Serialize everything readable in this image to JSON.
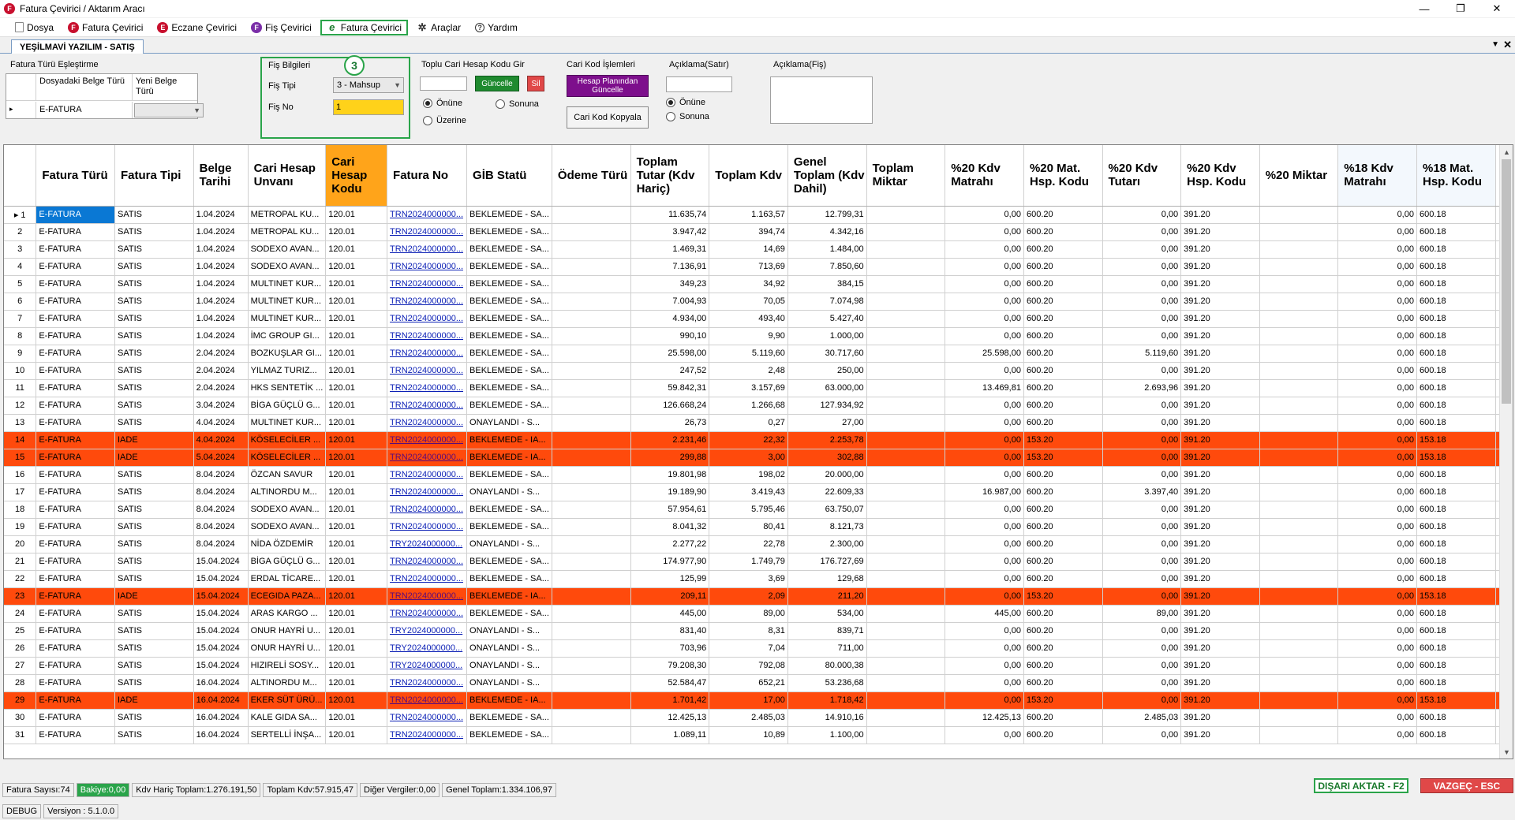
{
  "window": {
    "title": "Fatura Çevirici / Aktarım Aracı",
    "app_icon_letter": "F",
    "controls": [
      "—",
      "❐",
      "✕"
    ]
  },
  "menu": [
    {
      "label": "Dosya",
      "icon": "document-icon",
      "icon_text": ""
    },
    {
      "label": "Fatura Çevirici",
      "icon": "f-red-icon",
      "icon_text": "F"
    },
    {
      "label": "Eczane Çevirici",
      "icon": "e-red-icon",
      "icon_text": "E"
    },
    {
      "label": "Fiş Çevirici",
      "icon": "f-purple-icon",
      "icon_text": "F"
    },
    {
      "label": "Fatura Çevirici",
      "icon": "e-green-icon",
      "icon_text": "e"
    },
    {
      "label": "Araçlar",
      "icon": "tools-icon",
      "icon_text": "✲"
    },
    {
      "label": "Yardım",
      "icon": "help-icon",
      "icon_text": "?"
    }
  ],
  "tab": {
    "label": "YEŞİLMAVİ YAZILIM - SATIŞ",
    "arrow": "▼",
    "close": "✕"
  },
  "mapping": {
    "title": "Fatura Türü Eşleştirme",
    "col1": "Dosyadaki Belge Türü",
    "col2": "Yeni Belge Türü",
    "row_marker": "▸",
    "row_value": "E-FATURA",
    "row_new": ""
  },
  "fis_bilgileri": {
    "title": "Fiş Bilgileri",
    "step": "3",
    "fis_tipi_label": "Fiş Tipi",
    "fis_tipi_value": "3 - Mahsup",
    "fis_no_label": "Fiş No",
    "fis_no_value": "1"
  },
  "toplu_cari": {
    "title": "Toplu Cari Hesap Kodu Gir",
    "input_value": "",
    "update_label": "Güncelle",
    "delete_label": "Sil",
    "radio1": "Önüne",
    "radio2": "Sonuna",
    "radio3": "Üzerine"
  },
  "cari_kod": {
    "title": "Cari Kod İşlemleri",
    "btn1": "Hesap Planından Güncelle",
    "btn2": "Cari Kod Kopyala"
  },
  "aciklama_satir": {
    "title": "Açıklama(Satır)",
    "value": "",
    "radio1": "Önüne",
    "radio2": "Sonuna"
  },
  "aciklama_fis": {
    "title": "Açıklama(Fiş)",
    "value": ""
  },
  "colors": {
    "highlight_orange": "#ffa41a",
    "iade_row": "#ff4a0c",
    "green": "#2aa44a",
    "red_btn": "#e04848"
  },
  "grid": {
    "headers": [
      "Fatura Türü",
      "Fatura Tipi",
      "Belge Tarihi",
      "Cari Hesap Unvanı",
      "Cari Hesap Kodu",
      "Fatura No",
      "GİB Statü",
      "Ödeme Türü",
      "Toplam Tutar (Kdv Hariç)",
      "Toplam Kdv",
      "Genel Toplam (Kdv Dahil)",
      "Toplam Miktar",
      "%20 Kdv Matrahı",
      "%20 Mat. Hsp. Kodu",
      "%20 Kdv Tutarı",
      "%20 Kdv Hsp. Kodu",
      "%20 Miktar",
      "%18 Kdv Matrahı",
      "%18 Mat. Hsp. Kodu",
      "%"
    ],
    "rows": [
      [
        "1",
        "E-FATURA",
        "SATIS",
        "1.04.2024",
        "METROPAL KU...",
        "120.01",
        "TRN2024000000...",
        "BEKLEMEDE - SA...",
        "",
        "11.635,74",
        "1.163,57",
        "12.799,31",
        "",
        "0,00",
        "600.20",
        "0,00",
        "391.20",
        "",
        "0,00",
        "600.18",
        ""
      ],
      [
        "2",
        "E-FATURA",
        "SATIS",
        "1.04.2024",
        "METROPAL KU...",
        "120.01",
        "TRN2024000000...",
        "BEKLEMEDE - SA...",
        "",
        "3.947,42",
        "394,74",
        "4.342,16",
        "",
        "0,00",
        "600.20",
        "0,00",
        "391.20",
        "",
        "0,00",
        "600.18",
        ""
      ],
      [
        "3",
        "E-FATURA",
        "SATIS",
        "1.04.2024",
        "SODEXO AVAN...",
        "120.01",
        "TRN2024000000...",
        "BEKLEMEDE - SA...",
        "",
        "1.469,31",
        "14,69",
        "1.484,00",
        "",
        "0,00",
        "600.20",
        "0,00",
        "391.20",
        "",
        "0,00",
        "600.18",
        ""
      ],
      [
        "4",
        "E-FATURA",
        "SATIS",
        "1.04.2024",
        "SODEXO AVAN...",
        "120.01",
        "TRN2024000000...",
        "BEKLEMEDE - SA...",
        "",
        "7.136,91",
        "713,69",
        "7.850,60",
        "",
        "0,00",
        "600.20",
        "0,00",
        "391.20",
        "",
        "0,00",
        "600.18",
        ""
      ],
      [
        "5",
        "E-FATURA",
        "SATIS",
        "1.04.2024",
        "MULTINET KUR...",
        "120.01",
        "TRN2024000000...",
        "BEKLEMEDE - SA...",
        "",
        "349,23",
        "34,92",
        "384,15",
        "",
        "0,00",
        "600.20",
        "0,00",
        "391.20",
        "",
        "0,00",
        "600.18",
        ""
      ],
      [
        "6",
        "E-FATURA",
        "SATIS",
        "1.04.2024",
        "MULTINET KUR...",
        "120.01",
        "TRN2024000000...",
        "BEKLEMEDE - SA...",
        "",
        "7.004,93",
        "70,05",
        "7.074,98",
        "",
        "0,00",
        "600.20",
        "0,00",
        "391.20",
        "",
        "0,00",
        "600.18",
        ""
      ],
      [
        "7",
        "E-FATURA",
        "SATIS",
        "1.04.2024",
        "MULTINET KUR...",
        "120.01",
        "TRN2024000000...",
        "BEKLEMEDE - SA...",
        "",
        "4.934,00",
        "493,40",
        "5.427,40",
        "",
        "0,00",
        "600.20",
        "0,00",
        "391.20",
        "",
        "0,00",
        "600.18",
        ""
      ],
      [
        "8",
        "E-FATURA",
        "SATIS",
        "1.04.2024",
        "İMC GROUP GI...",
        "120.01",
        "TRN2024000000...",
        "BEKLEMEDE - SA...",
        "",
        "990,10",
        "9,90",
        "1.000,00",
        "",
        "0,00",
        "600.20",
        "0,00",
        "391.20",
        "",
        "0,00",
        "600.18",
        ""
      ],
      [
        "9",
        "E-FATURA",
        "SATIS",
        "2.04.2024",
        "BOZKUŞLAR GI...",
        "120.01",
        "TRN2024000000...",
        "BEKLEMEDE - SA...",
        "",
        "25.598,00",
        "5.119,60",
        "30.717,60",
        "",
        "25.598,00",
        "600.20",
        "5.119,60",
        "391.20",
        "",
        "0,00",
        "600.18",
        ""
      ],
      [
        "10",
        "E-FATURA",
        "SATIS",
        "2.04.2024",
        "YILMAZ TURIZ...",
        "120.01",
        "TRN2024000000...",
        "BEKLEMEDE - SA...",
        "",
        "247,52",
        "2,48",
        "250,00",
        "",
        "0,00",
        "600.20",
        "0,00",
        "391.20",
        "",
        "0,00",
        "600.18",
        ""
      ],
      [
        "11",
        "E-FATURA",
        "SATIS",
        "2.04.2024",
        "HKS SENTETİK ...",
        "120.01",
        "TRN2024000000...",
        "BEKLEMEDE - SA...",
        "",
        "59.842,31",
        "3.157,69",
        "63.000,00",
        "",
        "13.469,81",
        "600.20",
        "2.693,96",
        "391.20",
        "",
        "0,00",
        "600.18",
        ""
      ],
      [
        "12",
        "E-FATURA",
        "SATIS",
        "3.04.2024",
        "BİGA GÜÇLÜ G...",
        "120.01",
        "TRN2024000000...",
        "BEKLEMEDE - SA...",
        "",
        "126.668,24",
        "1.266,68",
        "127.934,92",
        "",
        "0,00",
        "600.20",
        "0,00",
        "391.20",
        "",
        "0,00",
        "600.18",
        ""
      ],
      [
        "13",
        "E-FATURA",
        "SATIS",
        "4.04.2024",
        "MULTINET KUR...",
        "120.01",
        "TRN2024000000...",
        "ONAYLANDI - S...",
        "",
        "26,73",
        "0,27",
        "27,00",
        "",
        "0,00",
        "600.20",
        "0,00",
        "391.20",
        "",
        "0,00",
        "600.18",
        ""
      ],
      [
        "14",
        "E-FATURA",
        "IADE",
        "4.04.2024",
        "KÖSELECİLER ...",
        "120.01",
        "TRN2024000000...",
        "BEKLEMEDE - IA...",
        "",
        "2.231,46",
        "22,32",
        "2.253,78",
        "",
        "0,00",
        "153.20",
        "0,00",
        "391.20",
        "",
        "0,00",
        "153.18",
        ""
      ],
      [
        "15",
        "E-FATURA",
        "IADE",
        "5.04.2024",
        "KÖSELECİLER ...",
        "120.01",
        "TRN2024000000...",
        "BEKLEMEDE - IA...",
        "",
        "299,88",
        "3,00",
        "302,88",
        "",
        "0,00",
        "153.20",
        "0,00",
        "391.20",
        "",
        "0,00",
        "153.18",
        ""
      ],
      [
        "16",
        "E-FATURA",
        "SATIS",
        "8.04.2024",
        "ÖZCAN SAVUR",
        "120.01",
        "TRN2024000000...",
        "BEKLEMEDE - SA...",
        "",
        "19.801,98",
        "198,02",
        "20.000,00",
        "",
        "0,00",
        "600.20",
        "0,00",
        "391.20",
        "",
        "0,00",
        "600.18",
        ""
      ],
      [
        "17",
        "E-FATURA",
        "SATIS",
        "8.04.2024",
        "ALTINORDU M...",
        "120.01",
        "TRN2024000000...",
        "ONAYLANDI - S...",
        "",
        "19.189,90",
        "3.419,43",
        "22.609,33",
        "",
        "16.987,00",
        "600.20",
        "3.397,40",
        "391.20",
        "",
        "0,00",
        "600.18",
        ""
      ],
      [
        "18",
        "E-FATURA",
        "SATIS",
        "8.04.2024",
        "SODEXO AVAN...",
        "120.01",
        "TRN2024000000...",
        "BEKLEMEDE - SA...",
        "",
        "57.954,61",
        "5.795,46",
        "63.750,07",
        "",
        "0,00",
        "600.20",
        "0,00",
        "391.20",
        "",
        "0,00",
        "600.18",
        ""
      ],
      [
        "19",
        "E-FATURA",
        "SATIS",
        "8.04.2024",
        "SODEXO AVAN...",
        "120.01",
        "TRN2024000000...",
        "BEKLEMEDE - SA...",
        "",
        "8.041,32",
        "80,41",
        "8.121,73",
        "",
        "0,00",
        "600.20",
        "0,00",
        "391.20",
        "",
        "0,00",
        "600.18",
        ""
      ],
      [
        "20",
        "E-FATURA",
        "SATIS",
        "8.04.2024",
        "NİDA ÖZDEMİR",
        "120.01",
        "TRY2024000000...",
        "ONAYLANDI - S...",
        "",
        "2.277,22",
        "22,78",
        "2.300,00",
        "",
        "0,00",
        "600.20",
        "0,00",
        "391.20",
        "",
        "0,00",
        "600.18",
        ""
      ],
      [
        "21",
        "E-FATURA",
        "SATIS",
        "15.04.2024",
        "BİGA GÜÇLÜ G...",
        "120.01",
        "TRN2024000000...",
        "BEKLEMEDE - SA...",
        "",
        "174.977,90",
        "1.749,79",
        "176.727,69",
        "",
        "0,00",
        "600.20",
        "0,00",
        "391.20",
        "",
        "0,00",
        "600.18",
        ""
      ],
      [
        "22",
        "E-FATURA",
        "SATIS",
        "15.04.2024",
        "ERDAL TİCARE...",
        "120.01",
        "TRN2024000000...",
        "BEKLEMEDE - SA...",
        "",
        "125,99",
        "3,69",
        "129,68",
        "",
        "0,00",
        "600.20",
        "0,00",
        "391.20",
        "",
        "0,00",
        "600.18",
        ""
      ],
      [
        "23",
        "E-FATURA",
        "IADE",
        "15.04.2024",
        "ECEGIDA PAZA...",
        "120.01",
        "TRN2024000000...",
        "BEKLEMEDE - IA...",
        "",
        "209,11",
        "2,09",
        "211,20",
        "",
        "0,00",
        "153.20",
        "0,00",
        "391.20",
        "",
        "0,00",
        "153.18",
        ""
      ],
      [
        "24",
        "E-FATURA",
        "SATIS",
        "15.04.2024",
        "ARAS KARGO ...",
        "120.01",
        "TRN2024000000...",
        "BEKLEMEDE - SA...",
        "",
        "445,00",
        "89,00",
        "534,00",
        "",
        "445,00",
        "600.20",
        "89,00",
        "391.20",
        "",
        "0,00",
        "600.18",
        ""
      ],
      [
        "25",
        "E-FATURA",
        "SATIS",
        "15.04.2024",
        "ONUR HAYRİ U...",
        "120.01",
        "TRY2024000000...",
        "ONAYLANDI - S...",
        "",
        "831,40",
        "8,31",
        "839,71",
        "",
        "0,00",
        "600.20",
        "0,00",
        "391.20",
        "",
        "0,00",
        "600.18",
        ""
      ],
      [
        "26",
        "E-FATURA",
        "SATIS",
        "15.04.2024",
        "ONUR HAYRİ U...",
        "120.01",
        "TRY2024000000...",
        "ONAYLANDI - S...",
        "",
        "703,96",
        "7,04",
        "711,00",
        "",
        "0,00",
        "600.20",
        "0,00",
        "391.20",
        "",
        "0,00",
        "600.18",
        ""
      ],
      [
        "27",
        "E-FATURA",
        "SATIS",
        "15.04.2024",
        "HIZIRELİ SOSY...",
        "120.01",
        "TRY2024000000...",
        "ONAYLANDI - S...",
        "",
        "79.208,30",
        "792,08",
        "80.000,38",
        "",
        "0,00",
        "600.20",
        "0,00",
        "391.20",
        "",
        "0,00",
        "600.18",
        ""
      ],
      [
        "28",
        "E-FATURA",
        "SATIS",
        "16.04.2024",
        "ALTINORDU M...",
        "120.01",
        "TRN2024000000...",
        "ONAYLANDI - S...",
        "",
        "52.584,47",
        "652,21",
        "53.236,68",
        "",
        "0,00",
        "600.20",
        "0,00",
        "391.20",
        "",
        "0,00",
        "600.18",
        ""
      ],
      [
        "29",
        "E-FATURA",
        "IADE",
        "16.04.2024",
        "EKER SÜT ÜRÜ...",
        "120.01",
        "TRN2024000000...",
        "BEKLEMEDE - IA...",
        "",
        "1.701,42",
        "17,00",
        "1.718,42",
        "",
        "0,00",
        "153.20",
        "0,00",
        "391.20",
        "",
        "0,00",
        "153.18",
        ""
      ],
      [
        "30",
        "E-FATURA",
        "SATIS",
        "16.04.2024",
        "KALE GIDA SA...",
        "120.01",
        "TRN2024000000...",
        "BEKLEMEDE - SA...",
        "",
        "12.425,13",
        "2.485,03",
        "14.910,16",
        "",
        "12.425,13",
        "600.20",
        "2.485,03",
        "391.20",
        "",
        "0,00",
        "600.18",
        ""
      ],
      [
        "31",
        "E-FATURA",
        "SATIS",
        "16.04.2024",
        "SERTELLİ İNŞA...",
        "120.01",
        "TRN2024000000...",
        "BEKLEMEDE - SA...",
        "",
        "1.089,11",
        "10,89",
        "1.100,00",
        "",
        "0,00",
        "600.20",
        "0,00",
        "391.20",
        "",
        "0,00",
        "600.18",
        ""
      ]
    ],
    "red_rows": [
      14,
      15,
      23,
      29
    ]
  },
  "status": {
    "fatura_sayisi": "Fatura Sayısı:74",
    "bakiye": "Bakiye:0,00",
    "kdv_haric": "Kdv Hariç Toplam:1.276.191,50",
    "toplam_kdv": "Toplam Kdv:57.915,47",
    "diger": "Diğer Vergiler:0,00",
    "genel": "Genel Toplam:1.334.106,97",
    "export_btn": "DIŞARI AKTAR - F2",
    "cancel_btn": "VAZGEÇ - ESC"
  },
  "footer": {
    "mode": "DEBUG",
    "version": "Versiyon : 5.1.0.0"
  }
}
